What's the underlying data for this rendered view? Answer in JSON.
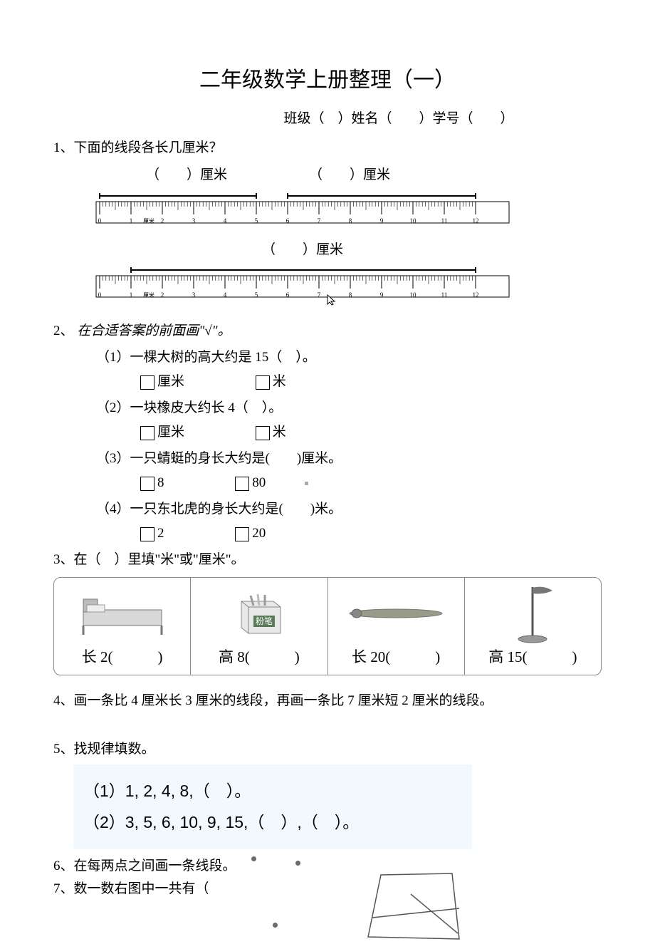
{
  "title": "二年级数学上册整理（一）",
  "subtitle": "班级（　）姓名（　　）学号（　　）",
  "q1": {
    "prompt": "1、下面的线段各长几厘米？",
    "blank_cm": "（　　）厘米",
    "ruler": {
      "ticks": [
        "0",
        "1",
        "2",
        "3",
        "4",
        "5",
        "6",
        "7",
        "8",
        "9",
        "10",
        "11",
        "12"
      ],
      "unit_label": "厘米",
      "seg1": {
        "from": 0,
        "to": 5
      },
      "seg2": {
        "from": 6,
        "to": 12
      },
      "seg3": {
        "from": 1,
        "to": 12
      }
    }
  },
  "q2": {
    "prompt": "2、",
    "intro": "在合适答案的前面画\"√\"。",
    "items": [
      {
        "text": "（1）一棵大树的高大约是 15（　）。",
        "a": "厘米",
        "b": "米"
      },
      {
        "text": "（2）一块橡皮大约长 4（　）。",
        "a": "厘米",
        "b": "米"
      },
      {
        "text": "（3）一只蜻蜓的身长大约是(　　)厘米。",
        "a": "8",
        "b": "80"
      },
      {
        "text": "（4）一只东北虎的身长大约是(　　)米。",
        "a": "2",
        "b": "20"
      }
    ]
  },
  "q3": {
    "prompt": "3、在（　）里填\"米\"或\"厘米\"。",
    "cells": [
      {
        "label": "长 2(　　　)",
        "kind": "bed"
      },
      {
        "label": "高 8(　　　)",
        "kind": "chalkbox",
        "box_text": "粉笔"
      },
      {
        "label": "长 20(　　　)",
        "kind": "caterpillar"
      },
      {
        "label": "高 15(　　　)",
        "kind": "flagpole"
      }
    ]
  },
  "q4": "4、画一条比 4 厘米长 3 厘米的线段，再画一条比 7 厘米短 2 厘米的线段。",
  "q5": {
    "prompt": "5、找规律填数。",
    "rows": [
      "（1）1, 2, 4, 8,（　）。",
      "（2）3, 5, 6, 10, 9, 15,（　）,（　）。"
    ]
  },
  "q6": "6、在每两点之间画一条线段。",
  "q7": "7、数一数右图中一共有（",
  "colors": {
    "bg": "#ffffff",
    "text": "#000000",
    "pattern_bg": "#f2f9fe",
    "grid_border": "#888888",
    "dot": "#6b6b6b"
  },
  "fonts": {
    "title_size_pt": 22,
    "body_size_pt": 14,
    "pattern_size_pt": 17
  }
}
